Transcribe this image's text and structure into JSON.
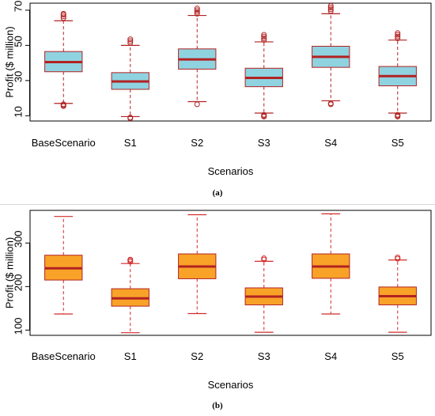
{
  "chart_data": [
    {
      "type": "box",
      "xlabel": "Scenarios",
      "ylabel": "Profit ($ million)",
      "caption": "(a)",
      "yticks": [
        10,
        30,
        50,
        70
      ],
      "ylim": [
        7,
        74
      ],
      "fill": "#8fd3e0",
      "median_color": "#b22222",
      "whisker_color": "#b22222",
      "outlier_color": "#b22222",
      "categories": [
        "BaseScenario",
        "S1",
        "S2",
        "S3",
        "S4",
        "S5"
      ],
      "boxes": [
        {
          "whisker_low": 17,
          "q1": 35,
          "median": 40.5,
          "q3": 46.5,
          "whisker_high": 64,
          "outliers": [
            15.5,
            16,
            16.5,
            65.5,
            66.5,
            67.5,
            68
          ]
        },
        {
          "whisker_low": 9.5,
          "q1": 25,
          "median": 29.5,
          "q3": 34.5,
          "whisker_high": 50,
          "outliers": [
            8.5,
            9,
            51.5,
            52.5,
            53.5
          ]
        },
        {
          "whisker_low": 18,
          "q1": 36.5,
          "median": 42,
          "q3": 48,
          "whisker_high": 67,
          "outliers": [
            16.5,
            68,
            69,
            70,
            71
          ]
        },
        {
          "whisker_low": 11.5,
          "q1": 26.5,
          "median": 31.5,
          "q3": 37,
          "whisker_high": 52,
          "outliers": [
            9.5,
            10,
            10.5,
            53,
            54,
            55,
            56
          ]
        },
        {
          "whisker_low": 18.5,
          "q1": 37.5,
          "median": 43.5,
          "q3": 49.5,
          "whisker_high": 68,
          "outliers": [
            16.5,
            17,
            69.5,
            70.5,
            71.5,
            72.5
          ]
        },
        {
          "whisker_low": 11.5,
          "q1": 27,
          "median": 32.5,
          "q3": 38,
          "whisker_high": 53,
          "outliers": [
            9.5,
            10,
            10.5,
            54,
            55,
            56,
            57
          ]
        }
      ]
    },
    {
      "type": "box",
      "xlabel": "Scenarios",
      "ylabel": "Profit ($ million)",
      "caption": "(b)",
      "yticks": [
        100,
        200,
        300
      ],
      "ylim": [
        88,
        375
      ],
      "fill": "#f8a328",
      "median_color": "#b22222",
      "whisker_color": "#d22a2a",
      "outlier_color": "#d22a2a",
      "categories": [
        "BaseScenario",
        "S1",
        "S2",
        "S3",
        "S4",
        "S5"
      ],
      "boxes": [
        {
          "whisker_low": 137,
          "q1": 215,
          "median": 242,
          "q3": 272,
          "whisker_high": 361,
          "outliers": []
        },
        {
          "whisker_low": 94,
          "q1": 155,
          "median": 173,
          "q3": 195,
          "whisker_high": 253,
          "outliers": [
            257,
            260,
            262
          ]
        },
        {
          "whisker_low": 138,
          "q1": 218,
          "median": 246,
          "q3": 275,
          "whisker_high": 365,
          "outliers": []
        },
        {
          "whisker_low": 95,
          "q1": 158,
          "median": 177,
          "q3": 197,
          "whisker_high": 258,
          "outliers": [
            262,
            265
          ]
        },
        {
          "whisker_low": 137,
          "q1": 219,
          "median": 246,
          "q3": 275,
          "whisker_high": 367,
          "outliers": []
        },
        {
          "whisker_low": 95,
          "q1": 158,
          "median": 178,
          "q3": 199,
          "whisker_high": 261,
          "outliers": [
            264,
            267
          ]
        }
      ]
    }
  ]
}
